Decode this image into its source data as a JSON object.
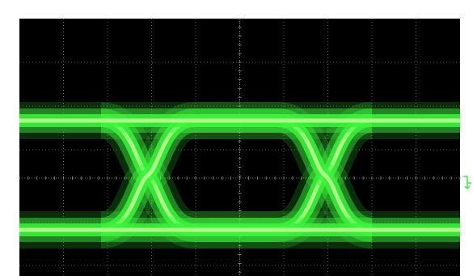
{
  "window": {
    "background_color": "#ffffff",
    "screen_color": "#000000"
  },
  "graticule": {
    "major_divisions_x": 10,
    "major_divisions_y": 8,
    "minor_ticks_per_division": 5,
    "color": "#6a7a6a"
  },
  "trace": {
    "type": "eye-diagram",
    "color": "#3cf23c",
    "core_color": "#c8ff9a",
    "eyes_visible": 2,
    "crossings_visible": 2
  },
  "markers": {
    "trigger_position_icon": "down-arrow-icon",
    "trigger_position_color": "#ffffff",
    "trigger_level_icon": "trigger-level-arrow-icon",
    "trigger_level_color": "#3cf23c"
  }
}
